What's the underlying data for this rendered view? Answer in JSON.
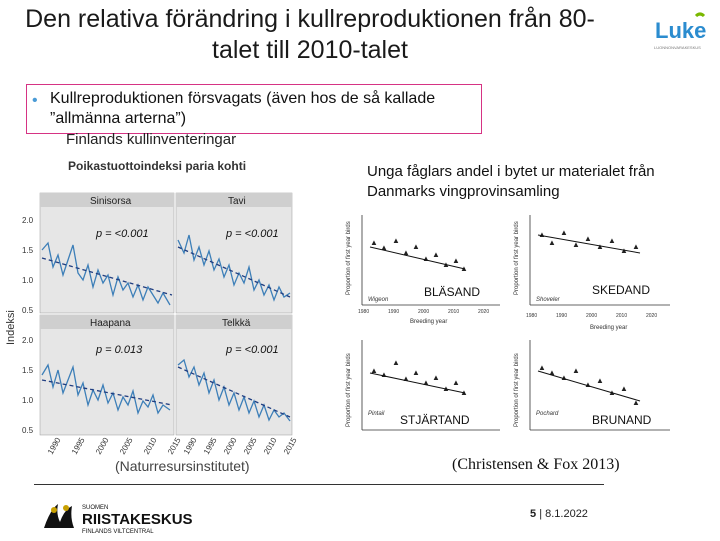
{
  "slide": {
    "title": "Den relativa förändring i kullreproduktionen från 80-talet till 2010-talet",
    "bullet": "Kullreproduktionen försvagats (även hos de så kallade ”allmänna arterna”)",
    "left_subheading": "Finlands kullinventeringar",
    "left_chart_title": "Poikastuottoindeksi paria kohti",
    "left_ylabel": "Indeksi",
    "left_panels": [
      {
        "name": "Sinisorsa",
        "p": "p = <0.001"
      },
      {
        "name": "Tavi",
        "p": "p = <0.001"
      },
      {
        "name": "Haapana",
        "p": "p = 0.013"
      },
      {
        "name": "Telkkä",
        "p": "p = <0.001"
      }
    ],
    "left_yticks": [
      "2.0",
      "1.5",
      "1.0",
      "0.5"
    ],
    "left_xticks": [
      "1990",
      "1995",
      "2000",
      "2005",
      "2010",
      "2015"
    ],
    "right_subheading": "Unga fåglars andel i bytet ur materialet från Danmarks vingprovinsamling",
    "right_panels": [
      {
        "species_inset": "Wigeon",
        "label": "BLÄSAND"
      },
      {
        "species_inset": "Shoveler",
        "label": "SKEDAND"
      },
      {
        "species_inset": "Pintail",
        "label": "STJÄRTAND"
      },
      {
        "species_inset": "Pochard",
        "label": "BRUNAND"
      }
    ],
    "right_xlabel": "Breeding year",
    "right_ylabel": "Proportion of first year birds",
    "right_xticks": [
      "1980",
      "1990",
      "2000",
      "2010",
      "2020"
    ],
    "caption_left": "(Naturresursinstitutet)",
    "caption_right": "(Christensen & Fox 2013)",
    "page_number": "5",
    "page_date": "8.1.2022",
    "logo_text": "Luke",
    "logo_sub": "LUONNONVARAKESKUS",
    "footer_logo_title": "RIISTAKESKUS",
    "footer_logo_line1": "SUOMEN",
    "footer_logo_line2": "FINLANDS VILTCENTRAL"
  },
  "colors": {
    "accent_blue": "#4a9bd6",
    "bullet_border": "#d63384",
    "luke_green": "#7ab800",
    "luke_blue": "#2b8ccf"
  }
}
